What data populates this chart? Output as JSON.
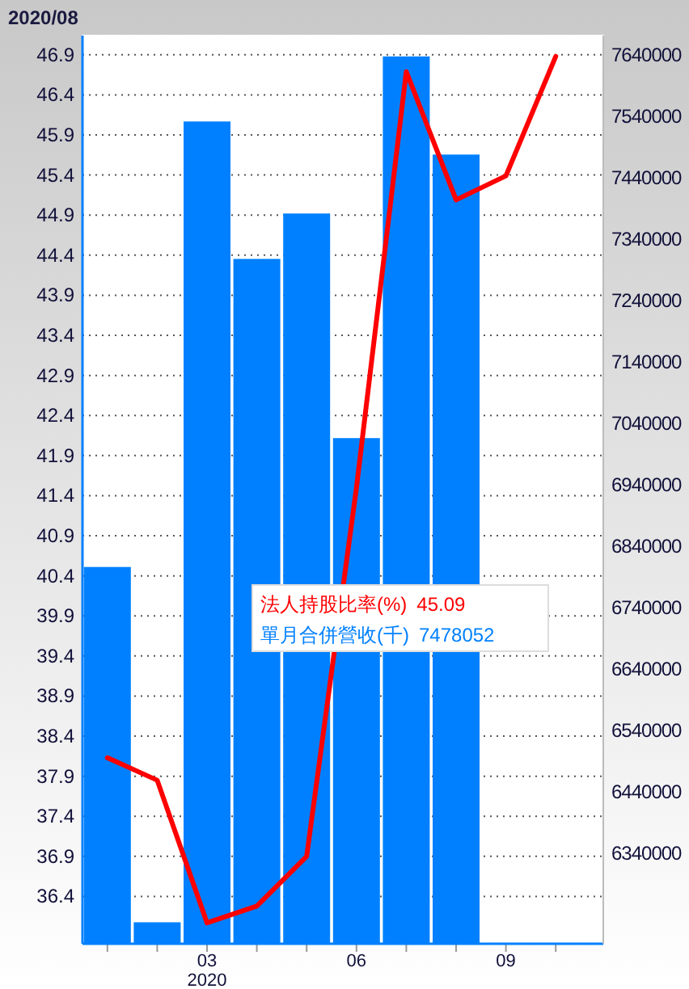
{
  "chart_data": {
    "type": "bar",
    "title": "2020/08",
    "categories": [
      null,
      null,
      "03",
      null,
      null,
      "06",
      null,
      null,
      "09",
      null
    ],
    "series": [
      {
        "name": "單月合併營收(千)",
        "axis": "y2",
        "color": "#0080ff",
        "values": [
          6806000,
          6227000,
          7532000,
          7308000,
          7382000,
          7016000,
          7638000,
          7478052,
          null,
          null
        ]
      },
      {
        "name": "法人持股比率(%)",
        "type": "line",
        "axis": "y",
        "color": "#ff0000",
        "values": [
          38.13,
          37.85,
          36.07,
          36.28,
          36.9,
          41.5,
          46.69,
          45.09,
          45.39,
          46.88
        ]
      }
    ],
    "ylim": [
      35.81,
      47.14
    ],
    "yticks": [
      36.4,
      36.9,
      37.4,
      37.9,
      38.4,
      38.9,
      39.4,
      39.9,
      40.4,
      40.9,
      41.4,
      41.9,
      42.4,
      42.9,
      43.4,
      43.9,
      44.4,
      44.9,
      45.4,
      45.9,
      46.4,
      46.9
    ],
    "y2lim": [
      6192000,
      7672000
    ],
    "y2ticks": [
      6340000,
      6440000,
      6540000,
      6640000,
      6740000,
      6840000,
      6940000,
      7040000,
      7140000,
      7240000,
      7340000,
      7440000,
      7540000,
      7640000
    ],
    "grid": "y",
    "legend": "center",
    "annotations": [
      "45.09",
      "7478052",
      "2020"
    ]
  }
}
